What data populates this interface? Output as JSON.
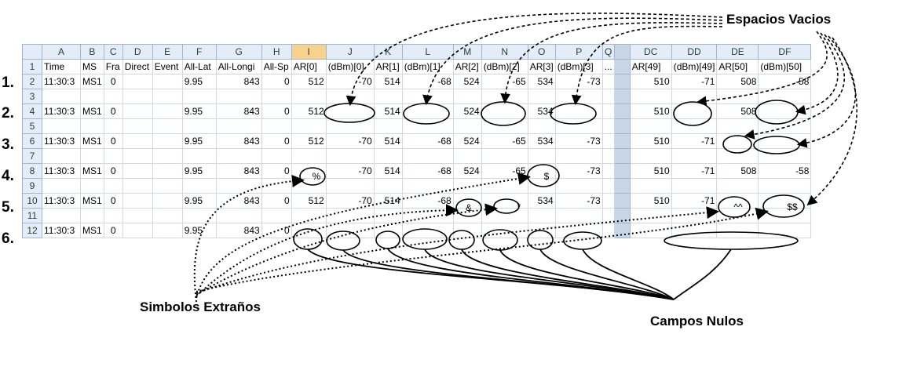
{
  "columns": [
    "A",
    "B",
    "C",
    "D",
    "E",
    "F",
    "G",
    "H",
    "I",
    "J",
    "K",
    "L",
    "M",
    "N",
    "O",
    "P",
    "Q",
    "",
    "DC",
    "DD",
    "DE",
    "DF"
  ],
  "header_row": [
    "Time",
    "MS",
    "Fra",
    "Direct",
    "Event",
    "All-Lat",
    "All-Longi",
    "All-Sp",
    "AR[0]",
    "(dBm)[0]",
    "AR[1]",
    "(dBm)[1]",
    "AR[2]",
    "(dBm)[2]",
    "AR[3]",
    "(dBm)[3]",
    "...",
    "",
    "AR[49]",
    "(dBm)[49]",
    "AR[50]",
    "(dBm)[50]"
  ],
  "row_numbers": [
    "1",
    "2",
    "3",
    "4",
    "5",
    "6",
    "7",
    "8",
    "9",
    "10",
    "11",
    "12"
  ],
  "rows": {
    "2": [
      "11:30:3",
      "MS1",
      "0",
      "",
      "",
      "9.95",
      "843",
      "0",
      "512",
      "-70",
      "514",
      "-68",
      "524",
      "-65",
      "534",
      "-73",
      "",
      "",
      "510",
      "-71",
      "508",
      "-58"
    ],
    "4": [
      "11:30:3",
      "MS1",
      "0",
      "",
      "",
      "9.95",
      "843",
      "0",
      "512",
      "",
      "514",
      "",
      "524",
      "",
      "534",
      "",
      "",
      "",
      "510",
      "",
      "508",
      ""
    ],
    "6": [
      "11:30:3",
      "MS1",
      "0",
      "",
      "",
      "9.95",
      "843",
      "0",
      "512",
      "-70",
      "514",
      "-68",
      "524",
      "-65",
      "534",
      "-73",
      "",
      "",
      "510",
      "-71",
      "",
      ""
    ],
    "8": [
      "11:30:3",
      "MS1",
      "0",
      "",
      "",
      "9.95",
      "843",
      "0",
      "",
      "-70",
      "514",
      "-68",
      "524",
      "-65",
      "",
      "-73",
      "",
      "",
      "510",
      "-71",
      "508",
      "-58"
    ],
    "10": [
      "11:30:3",
      "MS1",
      "0",
      "",
      "",
      "9.95",
      "843",
      "0",
      "512",
      "-70",
      "514",
      "-68",
      "",
      "",
      "534",
      "-73",
      "",
      "",
      "510",
      "-71",
      "",
      ""
    ],
    "12": [
      "11:30:3",
      "MS1",
      "0",
      "",
      "",
      "9.95",
      "843",
      "0",
      "",
      "",
      "",
      "",
      "",
      "",
      "",
      "",
      "",
      "",
      "",
      "",
      "",
      ""
    ]
  },
  "case_labels": [
    "1.",
    "2.",
    "3.",
    "4.",
    "5.",
    "6."
  ],
  "symbols": {
    "percent": "%",
    "dollar": "$",
    "ampersand": "&",
    "asterisk": "*",
    "carets": "^^",
    "double_dollar": "$$"
  },
  "annotations": {
    "empty_spaces": "Espacios Vacios",
    "strange_symbols": "Simbolos Extraños",
    "null_fields": "Campos Nulos"
  }
}
